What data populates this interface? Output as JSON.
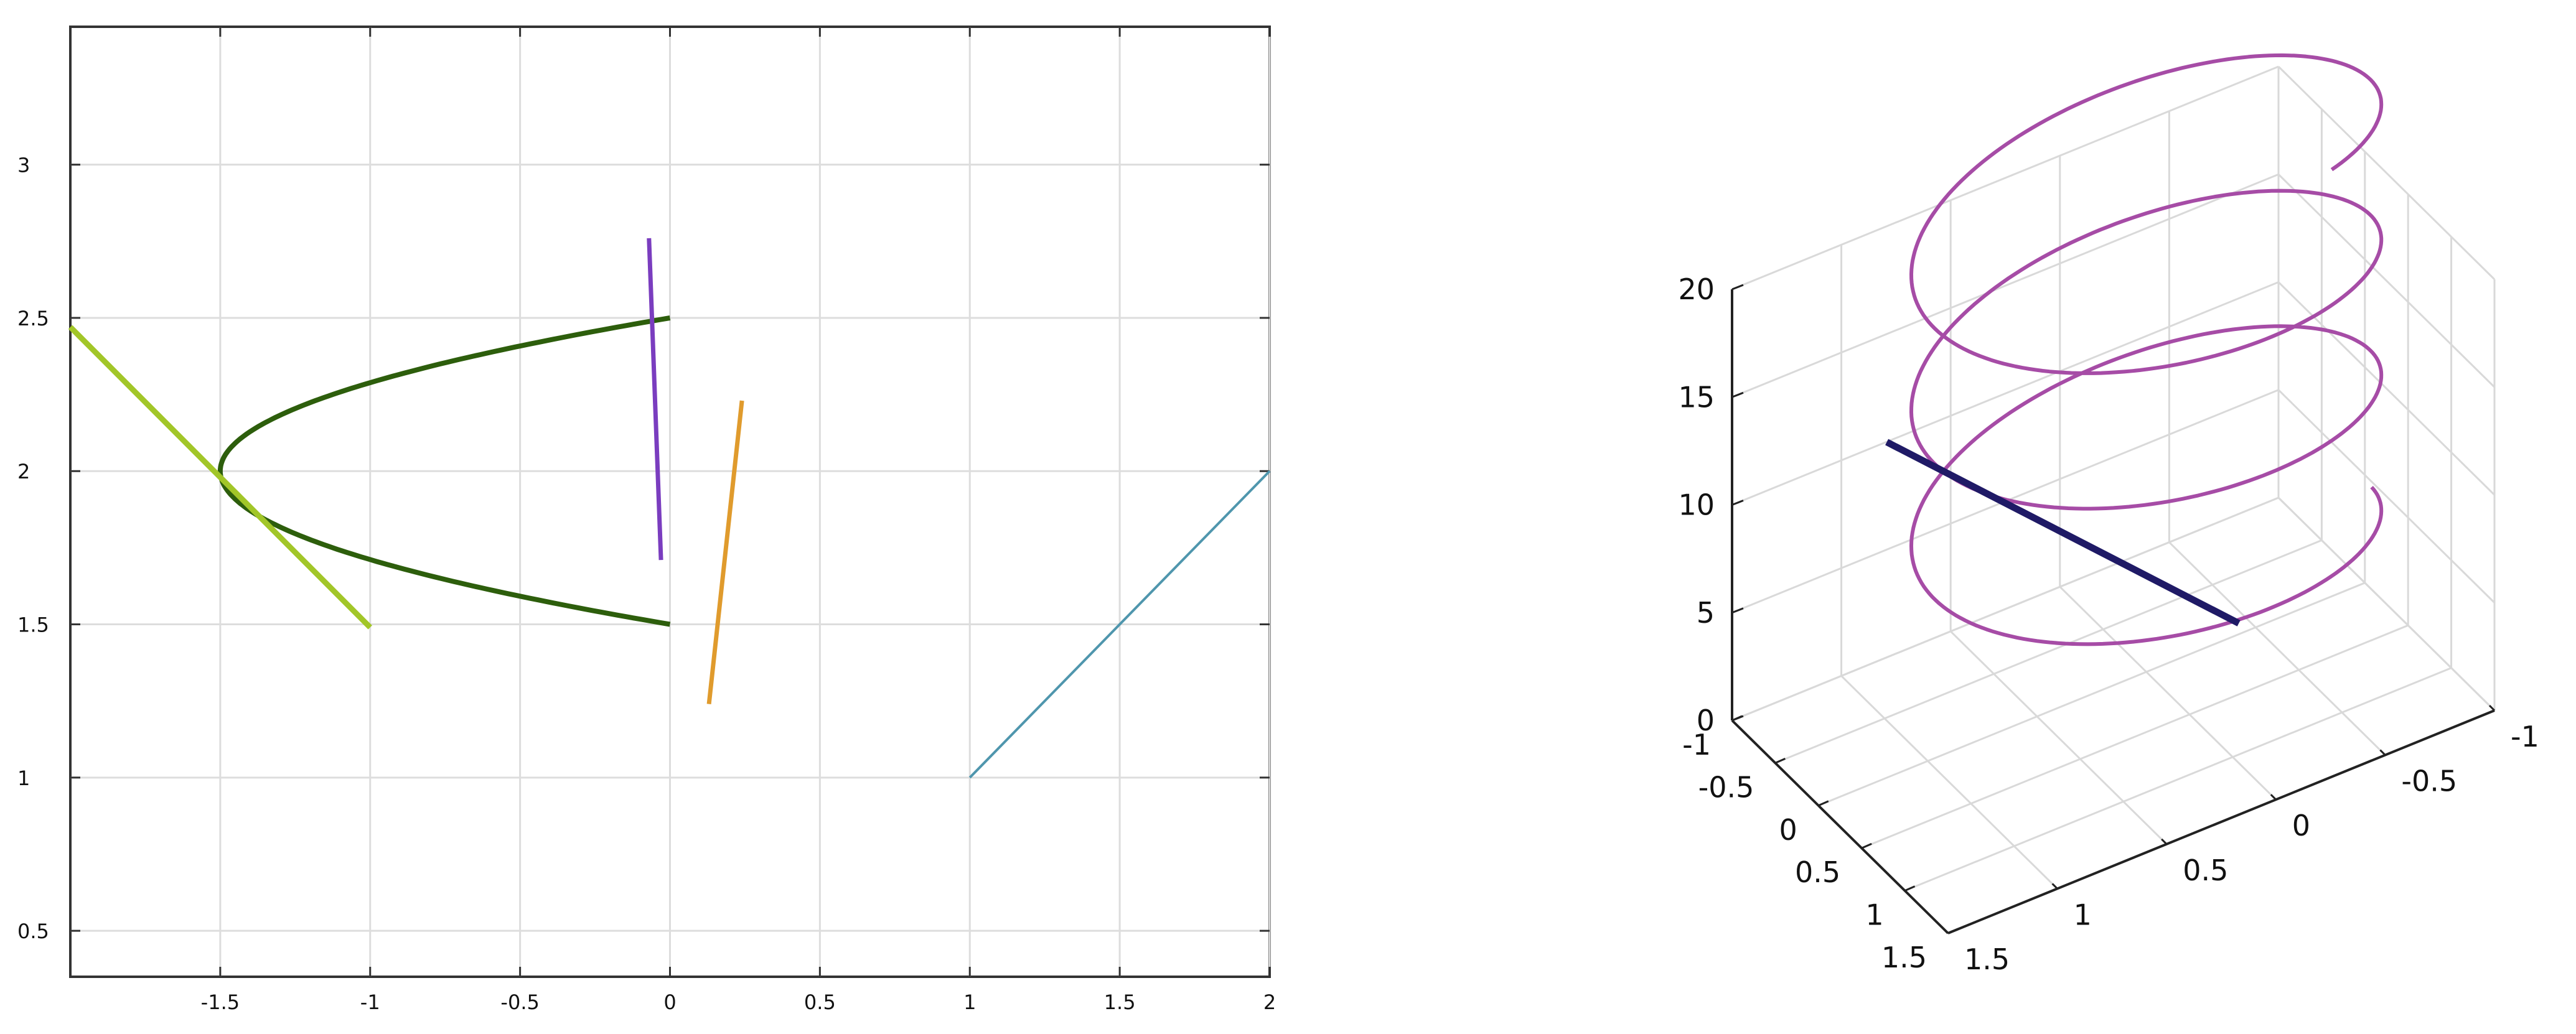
{
  "chart_data": [
    {
      "type": "line",
      "xlim": [
        -2,
        2
      ],
      "ylim": [
        0.35,
        3.45
      ],
      "grid": true,
      "x_ticks": [
        -1.5,
        -1,
        -0.5,
        0,
        0.5,
        1,
        1.5,
        2
      ],
      "x_tick_labels": [
        "-1.5",
        "-1",
        "-0.5",
        "0",
        "0.5",
        "1",
        "1.5",
        "2"
      ],
      "y_ticks": [
        0.5,
        1,
        1.5,
        2,
        2.5,
        3
      ],
      "y_tick_labels": [
        "0.5",
        "1",
        "1.5",
        "2",
        "2.5",
        "3"
      ],
      "series": [
        {
          "color": "#2d5e0c",
          "equation": "x = 6*(y-2)^2 - 1.5",
          "y_range": [
            1.5,
            2.5
          ]
        },
        {
          "color": "#a2c628",
          "x": [
            -2,
            -1
          ],
          "y": [
            2.47,
            1.49
          ]
        },
        {
          "color": "#7a3dbf",
          "x": [
            -0.07,
            -0.03
          ],
          "y": [
            2.76,
            1.71
          ]
        },
        {
          "color": "#e09b2d",
          "x": [
            0.24,
            0.13
          ],
          "y": [
            2.23,
            1.24
          ]
        },
        {
          "color": "#4f96ad",
          "x": [
            1,
            2
          ],
          "y": [
            1,
            2
          ]
        }
      ]
    },
    {
      "type": "line3d",
      "xlim": [
        -1,
        1.5
      ],
      "ylim": [
        -1,
        1.5
      ],
      "zlim": [
        0,
        20
      ],
      "grid": true,
      "x_ticks": [
        -1,
        -0.5,
        0,
        0.5,
        1,
        1.5
      ],
      "x_tick_labels": [
        "-1",
        "-0.5",
        "0",
        "0.5",
        "1",
        "1.5"
      ],
      "y_ticks": [
        -1,
        -0.5,
        0,
        0.5,
        1,
        1.5
      ],
      "y_tick_labels": [
        "-1",
        "-0.5",
        "0",
        "0.5",
        "1",
        "1.5"
      ],
      "z_ticks": [
        0,
        5,
        10,
        15,
        20
      ],
      "z_tick_labels": [
        "0",
        "5",
        "10",
        "15",
        "20"
      ],
      "series": [
        {
          "color": "#a64ca6",
          "equation": "x = cos(t), y = sin(t), z = t",
          "t_range": [
            4.8,
            24.6
          ]
        },
        {
          "color": "#1f1a66",
          "x": [
            1.02,
            -0.55
          ],
          "y": [
            -0.02,
            0.97
          ],
          "z": [
            6.2,
            12.5
          ]
        }
      ]
    }
  ]
}
